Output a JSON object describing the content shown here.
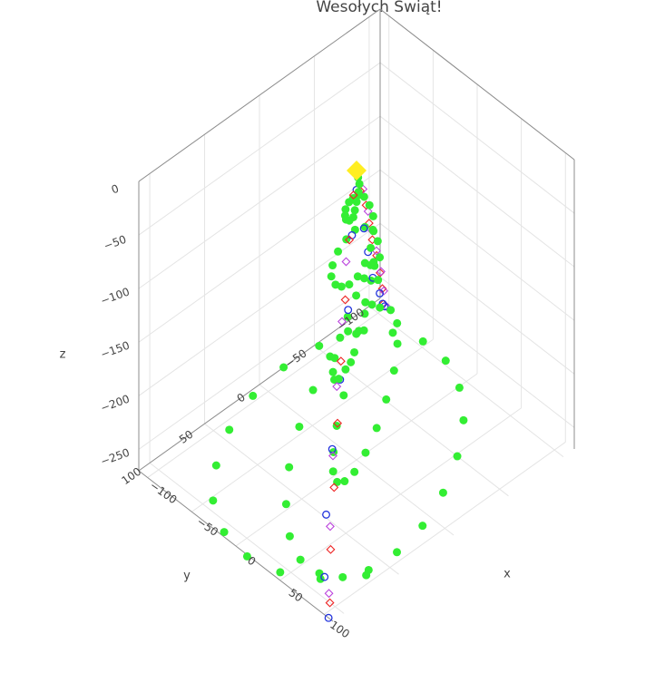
{
  "chart_data": {
    "type": "scatter3d",
    "title": "Wesołych Świąt!",
    "x_axis": {
      "title": "x",
      "range": [
        -110,
        110
      ],
      "ticks": [
        "−100",
        "−50",
        "0",
        "50",
        "100"
      ]
    },
    "y_axis": {
      "title": "y",
      "range": [
        -110,
        110
      ],
      "ticks": [
        "−100",
        "−50",
        "0",
        "50",
        "100"
      ]
    },
    "z_axis": {
      "title": "z",
      "range": [
        -270,
        0
      ],
      "ticks": [
        "0",
        "−50",
        "−100",
        "−150",
        "−200",
        "−250"
      ]
    },
    "grid": true,
    "legend": "none",
    "series": [
      {
        "marker": "filled-circle",
        "color": "#33ee33",
        "x": [
          -2,
          2,
          6,
          10,
          13,
          15,
          13,
          8,
          2,
          -5,
          -11,
          -15,
          -17,
          -15,
          -9,
          -1,
          8,
          16,
          22,
          25,
          24,
          19,
          11,
          0,
          -11,
          -21,
          -29,
          -34,
          -34,
          -30,
          -22,
          -11,
          2,
          15,
          27,
          36,
          41,
          42,
          37,
          28,
          15,
          0,
          -15,
          -29,
          -41,
          -50,
          -54,
          -53,
          -47,
          -36,
          -21,
          -4,
          14,
          31,
          46,
          58,
          65,
          66,
          61,
          50,
          34,
          15,
          -6,
          -27,
          -46,
          -62,
          -73,
          -79,
          -78,
          -71,
          -58,
          -40,
          -18,
          6,
          30,
          52,
          71,
          85,
          92,
          93,
          86,
          72,
          52,
          28,
          1,
          -27,
          -54,
          -77,
          -96,
          -107,
          -110,
          -105,
          -92,
          -72,
          -47,
          -17,
          14,
          44,
          71,
          93
        ],
        "y": [
          -3,
          -1,
          3,
          8,
          12,
          15,
          17,
          16,
          12,
          6,
          -2,
          -9,
          -15,
          -19,
          -19,
          -16,
          -9,
          0,
          10,
          19,
          26,
          29,
          28,
          23,
          13,
          0,
          -14,
          -26,
          -35,
          -39,
          -37,
          -30,
          -18,
          -2,
          15,
          31,
          43,
          50,
          50,
          44,
          32,
          15,
          -4,
          -23,
          -40,
          -53,
          -59,
          -59,
          -51,
          -37,
          -19,
          2,
          23,
          43,
          58,
          68,
          70,
          64,
          51,
          32,
          9,
          -15,
          -39,
          -59,
          -74,
          -81,
          -80,
          -71,
          -55,
          -33,
          -7,
          20,
          47,
          69,
          85,
          93,
          91,
          81,
          63,
          38,
          9,
          -21,
          -50,
          -75,
          -93,
          -103,
          -104,
          -95,
          -77,
          -52,
          -22,
          10,
          42,
          70,
          93,
          107,
          111,
          105,
          90,
          66
        ],
        "z": [
          -10,
          -12,
          -14,
          -17,
          -20,
          -23,
          -26,
          -29,
          -32,
          -35,
          -38,
          -42,
          -45,
          -48,
          -52,
          -55,
          -58,
          -62,
          -65,
          -69,
          -72,
          -75,
          -79,
          -82,
          -86,
          -89,
          -93,
          -96,
          -100,
          -103,
          -107,
          -110,
          -114,
          -117,
          -121,
          -124,
          -128,
          -131,
          -135,
          -138,
          -142,
          -145,
          -149,
          -152,
          -156,
          -159,
          -163,
          -166,
          -170,
          -173,
          -177,
          -180,
          -184,
          -187,
          -191,
          -194,
          -198,
          -201,
          -205,
          -208,
          -212,
          -215,
          -219,
          -222,
          -226,
          -229,
          -233,
          -236,
          -240,
          -243,
          -247,
          -250,
          -254,
          -257,
          -260,
          -262,
          -264,
          -266,
          -268,
          -269,
          -270,
          -270,
          -270,
          -270,
          -270,
          -270,
          -270,
          -270,
          -270,
          -270,
          -270,
          -270,
          -270,
          -270,
          -270,
          -270,
          -270,
          -270,
          -270,
          -270
        ]
      },
      {
        "marker": "open-circle",
        "color": "#2233dd",
        "x": [
          0,
          6,
          -9,
          24,
          -28,
          36,
          -40,
          52,
          -57,
          70,
          -76,
          88,
          -95,
          105
        ],
        "y": [
          0,
          9,
          -14,
          27,
          -33,
          44,
          -47,
          64,
          -67,
          84,
          -85,
          100,
          -102,
          110
        ],
        "z": [
          -18,
          -50,
          -70,
          -95,
          -118,
          -140,
          -160,
          -180,
          -200,
          -215,
          -235,
          -250,
          -262,
          -270
        ]
      },
      {
        "marker": "open-diamond",
        "color": "#ee2222",
        "x": [
          4,
          -7,
          13,
          -19,
          27,
          -33,
          42,
          -48,
          58,
          -63,
          74,
          -79,
          90,
          -95,
          104,
          -104
        ],
        "y": [
          6,
          -9,
          17,
          -24,
          32,
          -38,
          48,
          -53,
          64,
          -69,
          80,
          -85,
          96,
          -100,
          108,
          -108
        ],
        "z": [
          -16,
          -30,
          -44,
          -62,
          -80,
          -98,
          -116,
          -134,
          -152,
          -170,
          -190,
          -208,
          -226,
          -244,
          -258,
          -270
        ]
      },
      {
        "marker": "open-diamond",
        "color": "#bb44dd",
        "x": [
          -10,
          18,
          -23,
          32,
          -37,
          46,
          -52,
          64,
          -68,
          82,
          -86,
          98,
          -100
        ],
        "y": [
          -14,
          24,
          -29,
          39,
          -44,
          55,
          -60,
          73,
          -77,
          90,
          -94,
          104,
          -108
        ],
        "z": [
          -34,
          -56,
          -74,
          -92,
          -112,
          -132,
          -152,
          -172,
          -194,
          -214,
          -236,
          -256,
          -270
        ]
      },
      {
        "marker": "filled-diamond",
        "color": "#ffee22",
        "x": [
          0
        ],
        "y": [
          0
        ],
        "z": [
          0
        ]
      }
    ]
  }
}
